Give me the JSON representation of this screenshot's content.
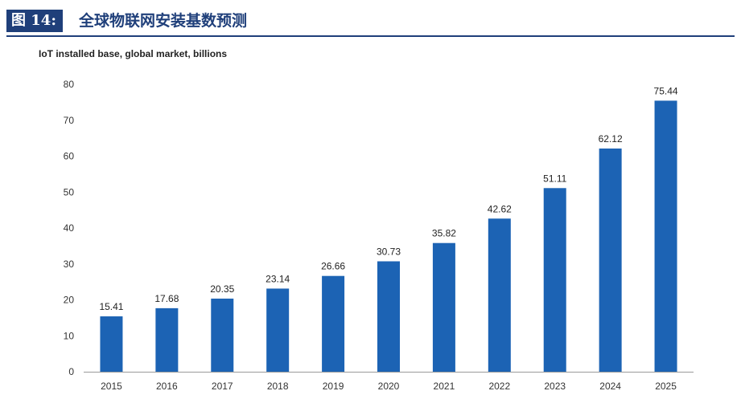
{
  "header": {
    "figure_label": "图 14:",
    "figure_title": "全球物联网安装基数预测"
  },
  "colors": {
    "accent": "#1f3f7a",
    "bar": "#1c63b4"
  },
  "chart_data": {
    "type": "bar",
    "title": "IoT installed base, global market, billions",
    "xlabel": "",
    "ylabel": "",
    "categories": [
      "2015",
      "2016",
      "2017",
      "2018",
      "2019",
      "2020",
      "2021",
      "2022",
      "2023",
      "2024",
      "2025"
    ],
    "values": [
      15.41,
      17.68,
      20.35,
      23.14,
      26.66,
      30.73,
      35.82,
      42.62,
      51.11,
      62.12,
      75.44
    ],
    "data_labels": [
      "15.41",
      "17.68",
      "20.35",
      "23.14",
      "26.66",
      "30.73",
      "35.82",
      "42.62",
      "51.11",
      "62.12",
      "75.44"
    ],
    "ylim": [
      0,
      80
    ],
    "yticks": [
      0,
      10,
      20,
      30,
      40,
      50,
      60,
      70,
      80
    ],
    "grid": false,
    "legend": "none"
  }
}
